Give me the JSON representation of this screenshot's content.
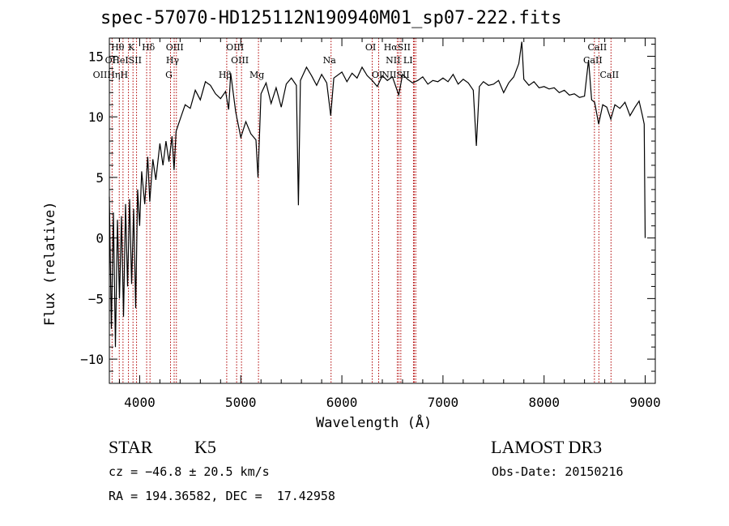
{
  "chart_data": {
    "type": "line",
    "title": "spec-57070-HD125112N190940M01_sp07-222.fits",
    "xlabel": "Wavelength (Å)",
    "ylabel": "Flux (relative)",
    "xlim": [
      3700,
      9100
    ],
    "ylim": [
      -12,
      16.5
    ],
    "xticks": [
      4000,
      5000,
      6000,
      7000,
      8000,
      9000
    ],
    "yticks": [
      -10,
      -5,
      0,
      5,
      10,
      15
    ],
    "grid": false,
    "series": [
      {
        "points": [
          [
            3700,
            3.4
          ],
          [
            3720,
            -7.5
          ],
          [
            3740,
            2.1
          ],
          [
            3760,
            -9.0
          ],
          [
            3780,
            1.5
          ],
          [
            3800,
            -5.0
          ],
          [
            3820,
            1.8
          ],
          [
            3840,
            -6.5
          ],
          [
            3860,
            2.8
          ],
          [
            3880,
            -4.0
          ],
          [
            3900,
            3.2
          ],
          [
            3920,
            -3.8
          ],
          [
            3940,
            2.4
          ],
          [
            3960,
            -5.8
          ],
          [
            3980,
            4.0
          ],
          [
            4000,
            1.0
          ],
          [
            4020,
            5.5
          ],
          [
            4050,
            2.8
          ],
          [
            4080,
            6.7
          ],
          [
            4100,
            3.0
          ],
          [
            4130,
            6.5
          ],
          [
            4160,
            4.8
          ],
          [
            4200,
            7.8
          ],
          [
            4230,
            6.0
          ],
          [
            4260,
            8.0
          ],
          [
            4290,
            6.3
          ],
          [
            4320,
            8.4
          ],
          [
            4340,
            5.6
          ],
          [
            4360,
            8.8
          ],
          [
            4400,
            9.8
          ],
          [
            4450,
            11.0
          ],
          [
            4500,
            10.7
          ],
          [
            4550,
            12.2
          ],
          [
            4600,
            11.4
          ],
          [
            4650,
            12.9
          ],
          [
            4700,
            12.6
          ],
          [
            4750,
            11.9
          ],
          [
            4800,
            11.5
          ],
          [
            4850,
            12.1
          ],
          [
            4880,
            10.6
          ],
          [
            4900,
            13.6
          ],
          [
            4950,
            10.4
          ],
          [
            5000,
            8.3
          ],
          [
            5050,
            9.6
          ],
          [
            5100,
            8.6
          ],
          [
            5150,
            8.1
          ],
          [
            5170,
            5.0
          ],
          [
            5200,
            11.9
          ],
          [
            5250,
            12.8
          ],
          [
            5300,
            11.1
          ],
          [
            5350,
            12.4
          ],
          [
            5400,
            10.8
          ],
          [
            5450,
            12.7
          ],
          [
            5500,
            13.2
          ],
          [
            5550,
            12.6
          ],
          [
            5570,
            2.7
          ],
          [
            5590,
            13.0
          ],
          [
            5650,
            14.1
          ],
          [
            5700,
            13.4
          ],
          [
            5750,
            12.6
          ],
          [
            5800,
            13.5
          ],
          [
            5850,
            12.8
          ],
          [
            5890,
            10.1
          ],
          [
            5920,
            13.2
          ],
          [
            6000,
            13.7
          ],
          [
            6050,
            12.9
          ],
          [
            6100,
            13.6
          ],
          [
            6150,
            13.2
          ],
          [
            6200,
            14.1
          ],
          [
            6250,
            13.4
          ],
          [
            6300,
            13.0
          ],
          [
            6350,
            12.5
          ],
          [
            6400,
            13.4
          ],
          [
            6450,
            13.0
          ],
          [
            6500,
            13.3
          ],
          [
            6563,
            11.8
          ],
          [
            6600,
            13.5
          ],
          [
            6650,
            13.1
          ],
          [
            6700,
            12.8
          ],
          [
            6750,
            13.0
          ],
          [
            6800,
            13.3
          ],
          [
            6850,
            12.7
          ],
          [
            6900,
            13.0
          ],
          [
            6950,
            12.9
          ],
          [
            7000,
            13.2
          ],
          [
            7050,
            12.9
          ],
          [
            7100,
            13.5
          ],
          [
            7150,
            12.7
          ],
          [
            7200,
            13.1
          ],
          [
            7250,
            12.8
          ],
          [
            7300,
            12.2
          ],
          [
            7330,
            7.6
          ],
          [
            7360,
            12.5
          ],
          [
            7400,
            12.9
          ],
          [
            7450,
            12.6
          ],
          [
            7500,
            12.7
          ],
          [
            7550,
            13.0
          ],
          [
            7600,
            12.0
          ],
          [
            7650,
            12.8
          ],
          [
            7700,
            13.3
          ],
          [
            7750,
            14.4
          ],
          [
            7780,
            16.2
          ],
          [
            7800,
            13.1
          ],
          [
            7850,
            12.6
          ],
          [
            7900,
            12.9
          ],
          [
            7950,
            12.4
          ],
          [
            8000,
            12.5
          ],
          [
            8050,
            12.3
          ],
          [
            8100,
            12.4
          ],
          [
            8150,
            12.0
          ],
          [
            8200,
            12.2
          ],
          [
            8250,
            11.8
          ],
          [
            8300,
            11.9
          ],
          [
            8350,
            11.6
          ],
          [
            8400,
            11.7
          ],
          [
            8440,
            14.7
          ],
          [
            8470,
            11.4
          ],
          [
            8500,
            11.2
          ],
          [
            8540,
            9.4
          ],
          [
            8580,
            11.0
          ],
          [
            8620,
            10.8
          ],
          [
            8660,
            9.8
          ],
          [
            8700,
            11.0
          ],
          [
            8750,
            10.7
          ],
          [
            8800,
            11.2
          ],
          [
            8850,
            10.1
          ],
          [
            8900,
            10.8
          ],
          [
            8940,
            11.3
          ],
          [
            8970,
            10.2
          ],
          [
            8990,
            9.4
          ],
          [
            9000,
            0.0
          ]
        ]
      }
    ],
    "lines": [
      {
        "name": "Hθ",
        "x": 3798
      },
      {
        "name": "OII",
        "x": 3727
      },
      {
        "name": "HeI",
        "x": 3889
      },
      {
        "name": "Hη",
        "x": 3835
      },
      {
        "name": "K",
        "x": 3934
      },
      {
        "name": "H",
        "x": 3969
      },
      {
        "name": "Hδ",
        "x": 4102
      },
      {
        "name": "SII",
        "x": 4069
      },
      {
        "name": "OIII",
        "x": 4363
      },
      {
        "name": "Hγ",
        "x": 4341
      },
      {
        "name": "G",
        "x": 4305
      },
      {
        "name": "Hβ",
        "x": 4861
      },
      {
        "name": "OIII",
        "x": 4959
      },
      {
        "name": "OIII",
        "x": 5007
      },
      {
        "name": "Mg",
        "x": 5175
      },
      {
        "name": "Na",
        "x": 5893
      },
      {
        "name": "OI",
        "x": 6300
      },
      {
        "name": "OI",
        "x": 6364
      },
      {
        "name": "Hα",
        "x": 6563
      },
      {
        "name": "NII",
        "x": 6548
      },
      {
        "name": "NII",
        "x": 6583
      },
      {
        "name": "SII",
        "x": 6716
      },
      {
        "name": "SII",
        "x": 6731
      },
      {
        "name": "LI",
        "x": 6708
      },
      {
        "name": "CaII",
        "x": 8498
      },
      {
        "name": "CaII",
        "x": 8542
      },
      {
        "name": "CaII",
        "x": 8662
      }
    ],
    "annotations": {
      "object_class": "STAR",
      "subclass": "K5",
      "survey": "LAMOST DR3",
      "cz": "cz = −46.8 ± 20.5 km/s",
      "obs_date": "Obs-Date: 20150216",
      "coords": "RA = 194.36582, DEC =  17.42958"
    }
  },
  "line_labels": [
    {
      "text": "Hθ",
      "x": 3798,
      "row": 0
    },
    {
      "text": "K",
      "x": 3934,
      "row": 0
    },
    {
      "text": "Hδ",
      "x": 4102,
      "row": 0
    },
    {
      "text": "OIII",
      "x": 4363,
      "row": 0
    },
    {
      "text": "OIII",
      "x": 4959,
      "row": 0
    },
    {
      "text": "OI",
      "x": 6300,
      "row": 0
    },
    {
      "text": "HαSII",
      "x": 6563,
      "row": 0
    },
    {
      "text": "CaII",
      "x": 8542,
      "row": 0
    },
    {
      "text": "OI",
      "x": 3727,
      "row": 1
    },
    {
      "text": "HeISII",
      "x": 3889,
      "row": 1
    },
    {
      "text": "Hγ",
      "x": 4341,
      "row": 1
    },
    {
      "text": "OIII",
      "x": 5007,
      "row": 1
    },
    {
      "text": "Na",
      "x": 5893,
      "row": 1
    },
    {
      "text": "NII LI",
      "x": 6583,
      "row": 1
    },
    {
      "text": "CaII",
      "x": 8498,
      "row": 1
    },
    {
      "text": "OIIHηH",
      "x": 3727,
      "row": 2
    },
    {
      "text": "G",
      "x": 4305,
      "row": 2
    },
    {
      "text": "Hβ",
      "x": 4861,
      "row": 2
    },
    {
      "text": "Mg",
      "x": 5175,
      "row": 2
    },
    {
      "text": "OI",
      "x": 6364,
      "row": 2
    },
    {
      "text": "NIISII",
      "x": 6548,
      "row": 2
    },
    {
      "text": "CaII",
      "x": 8662,
      "row": 2
    }
  ]
}
